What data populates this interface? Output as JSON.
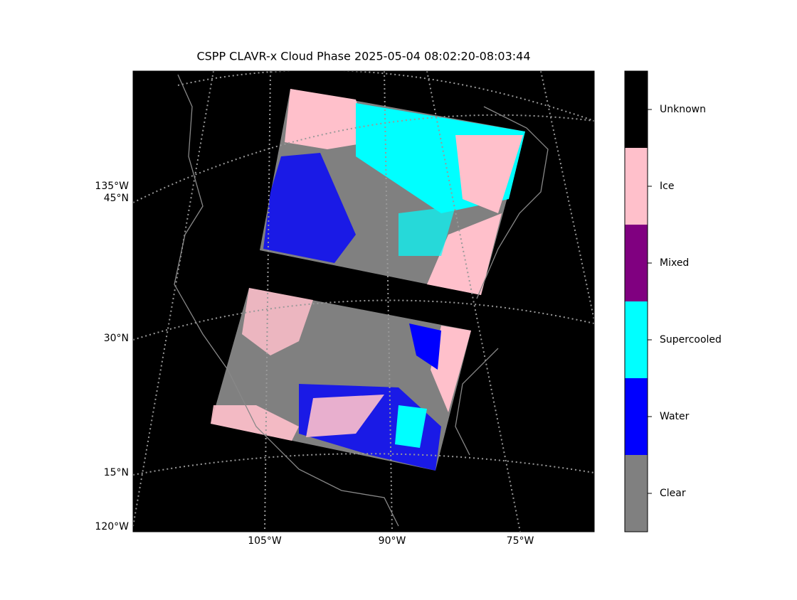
{
  "title": "CSPP CLAVR-x Cloud Phase 2025-05-04 08:02:20-08:03:44",
  "map": {
    "left_labels": [
      "135°W",
      "45°N",
      "30°N",
      "15°N",
      "120°W"
    ],
    "bottom_labels": [
      "105°W",
      "90°W",
      "75°W"
    ]
  },
  "colorbar": {
    "classes": [
      {
        "name": "Unknown",
        "color": "#000000"
      },
      {
        "name": "Ice",
        "color": "#ffc0cb"
      },
      {
        "name": "Mixed",
        "color": "#800080"
      },
      {
        "name": "Supercooled",
        "color": "#00ffff"
      },
      {
        "name": "Water",
        "color": "#0000ff"
      },
      {
        "name": "Clear",
        "color": "#808080"
      }
    ]
  }
}
